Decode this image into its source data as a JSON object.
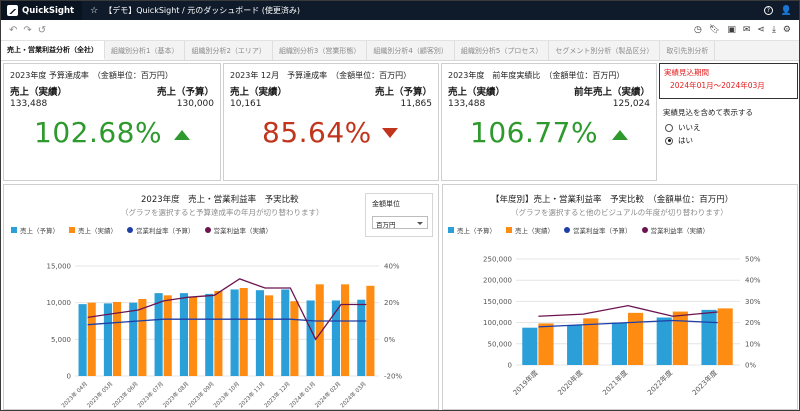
{
  "header": {
    "logo": "QuickSight",
    "title": "【デモ】QuickSight / 元のダッシュボード (使更済み)"
  },
  "tabs": [
    {
      "label": "売上・営業利益分析（全社）",
      "active": true
    },
    {
      "label": "組織別分析1（基本）"
    },
    {
      "label": "組織別分析2（エリア）"
    },
    {
      "label": "組織別分析3（営業形態）"
    },
    {
      "label": "組織別分析4（顧客別）"
    },
    {
      "label": "組織別分析5（プロセス）"
    },
    {
      "label": "セグメント別分析（製品区分）"
    },
    {
      "label": "取引先別分析"
    }
  ],
  "kpi1": {
    "title": "2023年度 予算達成率　（金額単位：百万円）",
    "left_label": "売上（実績）",
    "left_value": "133,488",
    "right_label": "売上（予算）",
    "right_value": "130,000",
    "percent": "102.68%",
    "color": "#2e9a2e"
  },
  "kpi2": {
    "title": "2023年 12月　予算達成率　（金額単位：百万円）",
    "left_label": "売上（実績）",
    "left_value": "10,161",
    "right_label": "売上（予算）",
    "right_value": "11,865",
    "percent": "85.64%",
    "color": "#c1351d"
  },
  "kpi3": {
    "title": "2023年度　前年度実績比　（金額単位：百万円）",
    "left_label": "売上（実績）",
    "left_value": "133,488",
    "right_label": "前年売上（実績）",
    "right_value": "125,024",
    "percent": "106.77%",
    "color": "#2e9a2e"
  },
  "period": {
    "title": "実績見込期間",
    "range": "2024年01月〜2024年03月"
  },
  "control": {
    "title": "実績見込を含めて表示する",
    "options": [
      {
        "label": "いいえ"
      },
      {
        "label": "はい",
        "checked": true
      }
    ]
  },
  "unit": {
    "label": "金額単位",
    "selected": "百万円"
  },
  "chart_data": [
    {
      "type": "bar",
      "title": "2023年度　売上・営業利益率　予実比較",
      "subtitle": "（グラフを選択すると予算達成率の年月が切り替わります）",
      "legend": [
        "売上（予算）",
        "売上（実績）",
        "営業利益率（予算）",
        "営業利益率（実績）"
      ],
      "categories": [
        "2023年 04月",
        "2023年 05月",
        "2023年 06月",
        "2023年 07月",
        "2023年 08月",
        "2023年 09月",
        "2023年 10月",
        "2023年 11月",
        "2023年 12月",
        "2024年 01月",
        "2024年 02月",
        "2024年 03月"
      ],
      "ylim": [
        0,
        15000
      ],
      "y2lim": [
        -20,
        40
      ],
      "yticks": [
        "15,000",
        "10,000",
        "5,000",
        "0"
      ],
      "y2ticks": [
        "40%",
        "20%",
        "0%",
        "-20%"
      ],
      "series": [
        {
          "name": "売上（予算）",
          "color": "#2a9fd8",
          "values": [
            9800,
            9900,
            10000,
            11300,
            11300,
            11200,
            11800,
            11700,
            11800,
            10300,
            10300,
            10400
          ]
        },
        {
          "name": "売上（実績）",
          "color": "#ff8c12",
          "values": [
            10000,
            10100,
            10500,
            11000,
            10800,
            11600,
            12000,
            11000,
            10200,
            12500,
            12500,
            12300
          ]
        },
        {
          "name": "営業利益率（予算）",
          "color": "#1f3fa8",
          "values": [
            8,
            9,
            10,
            11,
            11,
            11,
            11,
            11,
            11,
            10,
            10,
            10
          ],
          "axis": "right"
        },
        {
          "name": "営業利益率（実績）",
          "color": "#6b1450",
          "values": [
            12,
            14,
            16,
            21,
            23,
            24,
            33,
            28,
            28,
            0,
            19,
            19
          ],
          "axis": "right"
        }
      ]
    },
    {
      "type": "bar",
      "title": "【年度別】売上・営業利益率　予実比較　（金額単位：百万円）",
      "subtitle": "（グラフを選択すると他のビジュアルの年度が切り替わります）",
      "legend": [
        "売上（予算）",
        "売上（実績）",
        "営業利益率（予算）",
        "営業利益率（実績）"
      ],
      "categories": [
        "2019年度",
        "2020年度",
        "2021年度",
        "2022年度",
        "2023年度"
      ],
      "ylim": [
        0,
        250000
      ],
      "y2lim": [
        0,
        50
      ],
      "yticks": [
        "250,000",
        "200,000",
        "150,000",
        "100,000",
        "50,000",
        "0"
      ],
      "y2ticks": [
        "50%",
        "40%",
        "30%",
        "20%",
        "10%",
        "0%"
      ],
      "series": [
        {
          "name": "売上（予算）",
          "color": "#2a9fd8",
          "values": [
            88000,
            94000,
            100000,
            112000,
            130000
          ]
        },
        {
          "name": "売上（実績）",
          "color": "#ff8c12",
          "values": [
            98000,
            110000,
            123000,
            126000,
            133488
          ]
        },
        {
          "name": "営業利益率（予算）",
          "color": "#1f3fa8",
          "values": [
            18,
            19,
            20,
            21,
            20
          ],
          "axis": "right"
        },
        {
          "name": "営業利益率（実績）",
          "color": "#6b1450",
          "values": [
            23,
            24,
            28,
            23,
            25
          ],
          "axis": "right"
        }
      ]
    }
  ]
}
